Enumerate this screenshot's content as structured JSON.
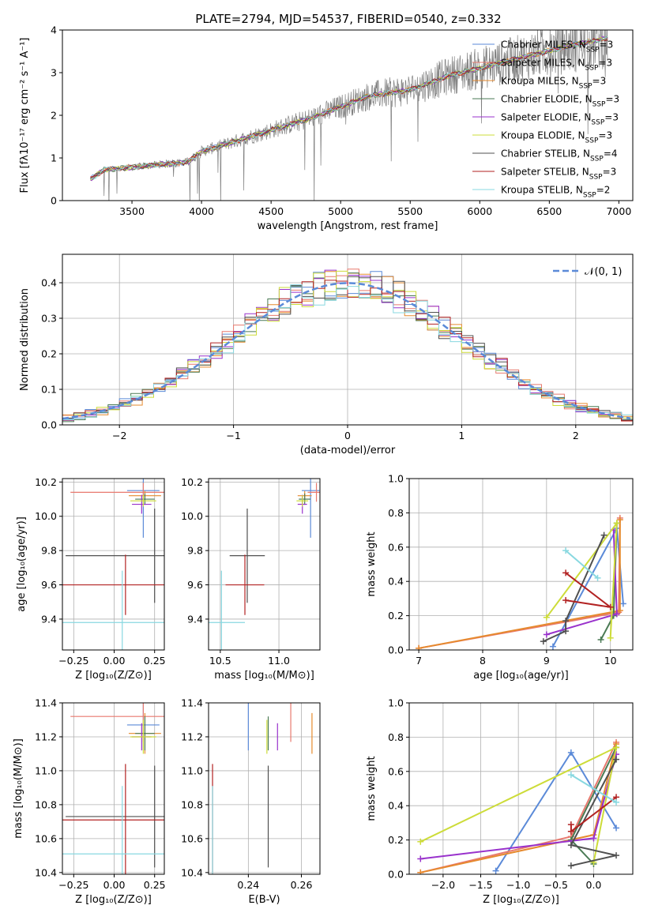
{
  "colors": {
    "chabrier_miles": "#5b8ad8",
    "salpeter_miles": "#e8796e",
    "kroupa_miles": "#e68a2e",
    "chabrier_elodie": "#4a7a54",
    "salpeter_elodie": "#9932cc",
    "kroupa_elodie": "#cddc39",
    "chabrier_stelib": "#505050",
    "salpeter_stelib": "#b22222",
    "kroupa_stelib": "#88d8e0",
    "data": "#808080",
    "grid": "#b0b0b0",
    "gauss": "#5b8ad8"
  },
  "chart_data": [
    {
      "type": "line",
      "title": "PLATE=2794, MJD=54537, FIBERID=0540, z=0.332",
      "xlabel": "wavelength [Angstrom, rest frame]",
      "ylabel": "Flux [fλ10⁻¹⁷ erg cm⁻² s⁻¹ A⁻¹]",
      "xlim": [
        3000,
        7100
      ],
      "ylim": [
        0,
        4
      ],
      "xticks": [
        "3500",
        "4000",
        "4500",
        "5000",
        "5500",
        "6000",
        "6500",
        "7000"
      ],
      "yticks": [
        "0",
        "1",
        "2",
        "3",
        "4"
      ],
      "legend_position": "top-right",
      "legend": [
        "Chabrier MILES, N_SSP=3",
        "Salpeter MILES, N_SSP=3",
        "Kroupa MILES, N_SSP=3",
        "Chabrier ELODIE, N_SSP=3",
        "Salpeter ELODIE, N_SSP=3",
        "Kroupa ELODIE, N_SSP=3",
        "Chabrier STELIB, N_SSP=4",
        "Salpeter STELIB, N_SSP=3",
        "Kroupa STELIB, N_SSP=2"
      ],
      "model_continuum": {
        "x": [
          3200,
          3300,
          3500,
          3700,
          3900,
          4000,
          4200,
          4500,
          4800,
          5000,
          5200,
          5500,
          5800,
          6000,
          6300,
          6600,
          6900
        ],
        "y": [
          0.5,
          0.72,
          0.78,
          0.85,
          0.9,
          1.15,
          1.35,
          1.65,
          1.95,
          2.2,
          2.45,
          2.6,
          2.95,
          3.1,
          3.35,
          3.6,
          3.8
        ]
      }
    },
    {
      "type": "line",
      "xlabel": "(data-model)/error",
      "ylabel": "Normed distribution",
      "xlim": [
        -2.5,
        2.5
      ],
      "ylim": [
        0,
        0.48
      ],
      "xticks": [
        "−2",
        "−1",
        "0",
        "1",
        "2"
      ],
      "yticks": [
        "0.0",
        "0.1",
        "0.2",
        "0.3",
        "0.4"
      ],
      "legend": [
        "𝒩(0, 1)"
      ],
      "legend_position": "top-right"
    },
    {
      "type": "scatter",
      "xlabel": "Z [log₁₀(Z/Z⊙)]",
      "ylabel": "age  [log₁₀(age/yr)]",
      "xlim": [
        -0.32,
        0.31
      ],
      "ylim": [
        9.22,
        10.22
      ],
      "xticks": [
        "−0.25",
        "0.00",
        "0.25"
      ],
      "yticks": [
        "9.4",
        "9.6",
        "9.8",
        "10.0",
        "10.2"
      ]
    },
    {
      "type": "scatter",
      "xlabel": "mass [log₁₀(M/M⊙)]",
      "xlim": [
        10.4,
        11.35
      ],
      "ylim": [
        9.22,
        10.22
      ],
      "xticks": [
        "10.5",
        "11.0"
      ],
      "yticks": [
        "9.4",
        "9.6",
        "9.8",
        "10.0",
        "10.2"
      ]
    },
    {
      "type": "line",
      "xlabel": "age  [log₁₀(age/yr)]",
      "ylabel": "mass weight",
      "xlim": [
        6.85,
        10.35
      ],
      "ylim": [
        0,
        1
      ],
      "xticks": [
        "7",
        "8",
        "9",
        "10"
      ],
      "yticks": [
        "0.0",
        "0.2",
        "0.4",
        "0.6",
        "0.8",
        "1.0"
      ]
    },
    {
      "type": "scatter",
      "xlabel": "Z [log₁₀(Z/Z⊙)]",
      "ylabel": "mass [log₁₀(M/M⊙)]",
      "xlim": [
        -0.32,
        0.31
      ],
      "ylim": [
        10.39,
        11.4
      ],
      "xticks": [
        "−0.25",
        "0.00",
        "0.25"
      ],
      "yticks": [
        "10.4",
        "10.6",
        "10.8",
        "11.0",
        "11.2",
        "11.4"
      ]
    },
    {
      "type": "scatter",
      "xlabel": "E(B-V)",
      "xlim": [
        0.225,
        0.267
      ],
      "ylim": [
        10.39,
        11.4
      ],
      "xticks": [
        "0.24",
        "0.26"
      ],
      "yticks": [
        "10.4",
        "10.6",
        "10.8",
        "11.0",
        "11.2",
        "11.4"
      ]
    },
    {
      "type": "line",
      "xlabel": "Z [log₁₀(Z/Z⊙)]",
      "ylabel": "mass weight",
      "xlim": [
        -2.45,
        0.52
      ],
      "ylim": [
        0,
        1
      ],
      "xticks": [
        "−2.0",
        "−1.5",
        "−1.0",
        "−0.5",
        "0.0"
      ],
      "yticks": [
        "0.0",
        "0.2",
        "0.4",
        "0.6",
        "0.8",
        "1.0"
      ]
    }
  ]
}
